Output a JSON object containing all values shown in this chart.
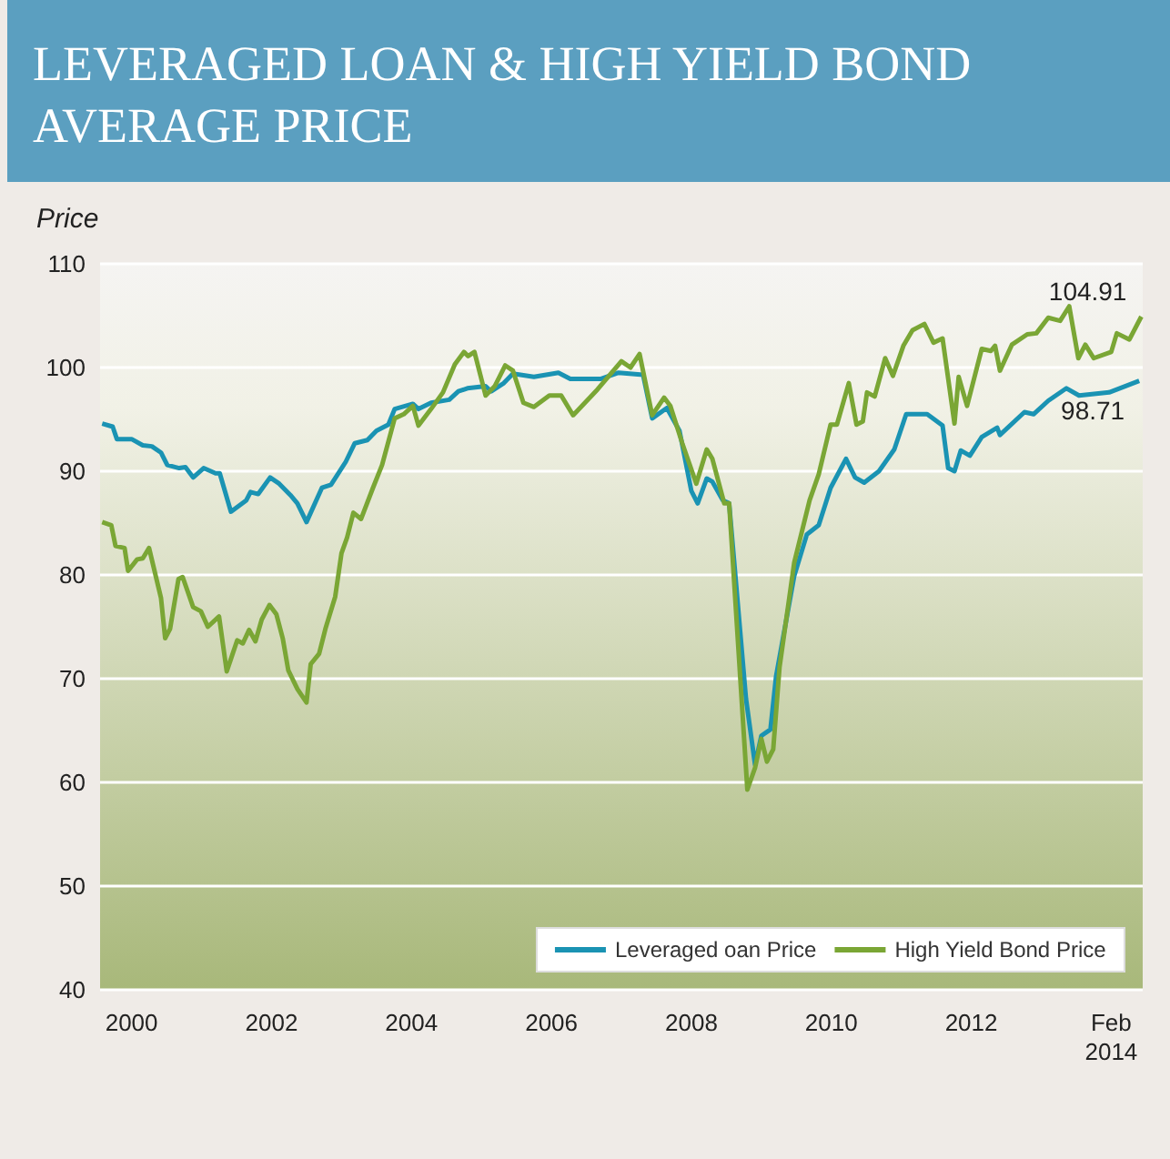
{
  "chart_data": {
    "type": "line",
    "title": "LEVERAGED LOAN & HIGH YIELD BOND AVERAGE PRICE",
    "ylabel": "Price",
    "xlim": [
      1999.55,
      2014.45
    ],
    "xticks": [
      2000,
      2002,
      2004,
      2006,
      2008,
      2010,
      2012,
      {
        "value": 2014,
        "label": "Feb\n2014"
      }
    ],
    "ylim": [
      40,
      110
    ],
    "yticks": [
      40,
      50,
      60,
      70,
      80,
      90,
      100,
      110
    ],
    "grid": "y",
    "legend": "bottom right",
    "marker": "none",
    "line_style": "solid",
    "annotations": [
      {
        "text": "104.91",
        "x": 2014.43,
        "y": 104.91
      },
      {
        "text": "98.71",
        "x": 2014.4,
        "y": 98.71
      }
    ],
    "series": [
      {
        "name": "Leveraged oan Price",
        "color": "#1a93b3",
        "x": [
          1999.58,
          1999.73,
          1999.79,
          2000.0,
          2000.16,
          2000.29,
          2000.42,
          2000.51,
          2000.68,
          2000.77,
          2000.88,
          2001.03,
          2001.2,
          2001.26,
          2001.42,
          2001.64,
          2001.7,
          2001.81,
          2001.98,
          2002.11,
          2002.27,
          2002.37,
          2002.5,
          2002.72,
          2002.85,
          2003.06,
          2003.19,
          2003.37,
          2003.5,
          2003.67,
          2003.76,
          2004.02,
          2004.1,
          2004.28,
          2004.54,
          2004.67,
          2004.8,
          2005.06,
          2005.14,
          2005.32,
          2005.45,
          2005.75,
          2006.1,
          2006.27,
          2006.7,
          2006.96,
          2007.31,
          2007.44,
          2007.65,
          2007.83,
          2008.0,
          2008.09,
          2008.22,
          2008.3,
          2008.45,
          2008.54,
          2008.78,
          2008.91,
          2009.0,
          2009.13,
          2009.21,
          2009.47,
          2009.65,
          2009.82,
          2009.99,
          2010.21,
          2010.34,
          2010.47,
          2010.68,
          2010.9,
          2011.07,
          2011.37,
          2011.59,
          2011.67,
          2011.76,
          2011.85,
          2011.98,
          2012.15,
          2012.37,
          2012.41,
          2012.76,
          2012.89,
          2013.1,
          2013.36,
          2013.54,
          2013.97,
          2014.4
        ],
        "values": [
          94.6,
          94.3,
          93.1,
          93.1,
          92.5,
          92.4,
          91.8,
          90.6,
          90.3,
          90.4,
          89.4,
          90.3,
          89.8,
          89.8,
          86.1,
          87.2,
          88.0,
          87.8,
          89.4,
          88.8,
          87.7,
          86.9,
          85.1,
          88.4,
          88.7,
          90.9,
          92.7,
          93.0,
          93.9,
          94.5,
          96.0,
          96.5,
          96.0,
          96.6,
          96.9,
          97.7,
          98.0,
          98.2,
          97.7,
          98.5,
          99.4,
          99.1,
          99.5,
          98.9,
          98.9,
          99.5,
          99.3,
          95.1,
          96.1,
          93.9,
          88.1,
          86.9,
          89.3,
          89.0,
          87.2,
          86.9,
          68.1,
          61.7,
          64.5,
          65.1,
          70.2,
          79.9,
          83.9,
          84.8,
          88.4,
          91.2,
          89.4,
          88.9,
          90.0,
          92.1,
          95.5,
          95.5,
          94.4,
          90.3,
          90.0,
          92.0,
          91.5,
          93.3,
          94.2,
          93.5,
          95.7,
          95.5,
          96.8,
          98.0,
          97.3,
          97.6,
          98.71
        ]
      },
      {
        "name": "High Yield Bond Price",
        "color": "#7aa635",
        "x": [
          1999.58,
          1999.71,
          1999.77,
          1999.9,
          1999.95,
          2000.08,
          2000.16,
          2000.25,
          2000.42,
          2000.48,
          2000.55,
          2000.67,
          2000.73,
          2000.88,
          2000.99,
          2001.09,
          2001.25,
          2001.36,
          2001.51,
          2001.59,
          2001.68,
          2001.77,
          2001.86,
          2001.97,
          2002.07,
          2002.16,
          2002.24,
          2002.37,
          2002.5,
          2002.56,
          2002.68,
          2002.77,
          2002.91,
          2003.0,
          2003.08,
          2003.17,
          2003.28,
          2003.45,
          2003.58,
          2003.76,
          2003.89,
          2004.02,
          2004.1,
          2004.28,
          2004.45,
          2004.62,
          2004.75,
          2004.81,
          2004.9,
          2005.06,
          2005.19,
          2005.34,
          2005.45,
          2005.6,
          2005.75,
          2005.97,
          2006.14,
          2006.31,
          2006.66,
          2007.0,
          2007.13,
          2007.26,
          2007.44,
          2007.61,
          2007.7,
          2007.87,
          2008.07,
          2008.22,
          2008.3,
          2008.47,
          2008.54,
          2008.8,
          2008.91,
          2009.0,
          2009.08,
          2009.17,
          2009.26,
          2009.47,
          2009.69,
          2009.82,
          2009.99,
          2010.08,
          2010.25,
          2010.36,
          2010.45,
          2010.51,
          2010.62,
          2010.77,
          2010.88,
          2011.03,
          2011.16,
          2011.33,
          2011.46,
          2011.59,
          2011.76,
          2011.82,
          2011.94,
          2012.15,
          2012.28,
          2012.34,
          2012.41,
          2012.58,
          2012.8,
          2012.93,
          2013.1,
          2013.27,
          2013.4,
          2013.53,
          2013.63,
          2013.75,
          2014.0,
          2014.08,
          2014.26,
          2014.43
        ],
        "values": [
          85.1,
          84.8,
          82.8,
          82.6,
          80.4,
          81.5,
          81.6,
          82.6,
          77.8,
          73.9,
          74.8,
          79.6,
          79.8,
          76.9,
          76.5,
          75.0,
          76.0,
          70.7,
          73.7,
          73.4,
          74.7,
          73.6,
          75.7,
          77.1,
          76.2,
          73.9,
          70.8,
          69.0,
          67.7,
          71.4,
          72.4,
          74.8,
          77.9,
          82.1,
          83.6,
          86.0,
          85.4,
          88.4,
          90.6,
          95.1,
          95.5,
          96.3,
          94.4,
          96.0,
          97.6,
          100.3,
          101.5,
          101.1,
          101.5,
          97.3,
          98.2,
          100.2,
          99.7,
          96.6,
          96.2,
          97.3,
          97.3,
          95.4,
          97.9,
          100.6,
          100.0,
          101.3,
          95.4,
          97.1,
          96.3,
          92.7,
          88.8,
          92.1,
          91.2,
          86.9,
          86.9,
          59.3,
          61.4,
          64.2,
          62.0,
          63.2,
          71.1,
          81.2,
          87.2,
          89.7,
          94.5,
          94.5,
          98.5,
          94.5,
          94.8,
          97.6,
          97.2,
          100.9,
          99.2,
          102.1,
          103.6,
          104.2,
          102.4,
          102.8,
          94.6,
          99.1,
          96.3,
          101.8,
          101.6,
          102.1,
          99.7,
          102.2,
          103.2,
          103.3,
          104.8,
          104.5,
          105.9,
          100.9,
          102.2,
          100.9,
          101.5,
          103.3,
          102.7,
          104.91
        ]
      }
    ]
  }
}
